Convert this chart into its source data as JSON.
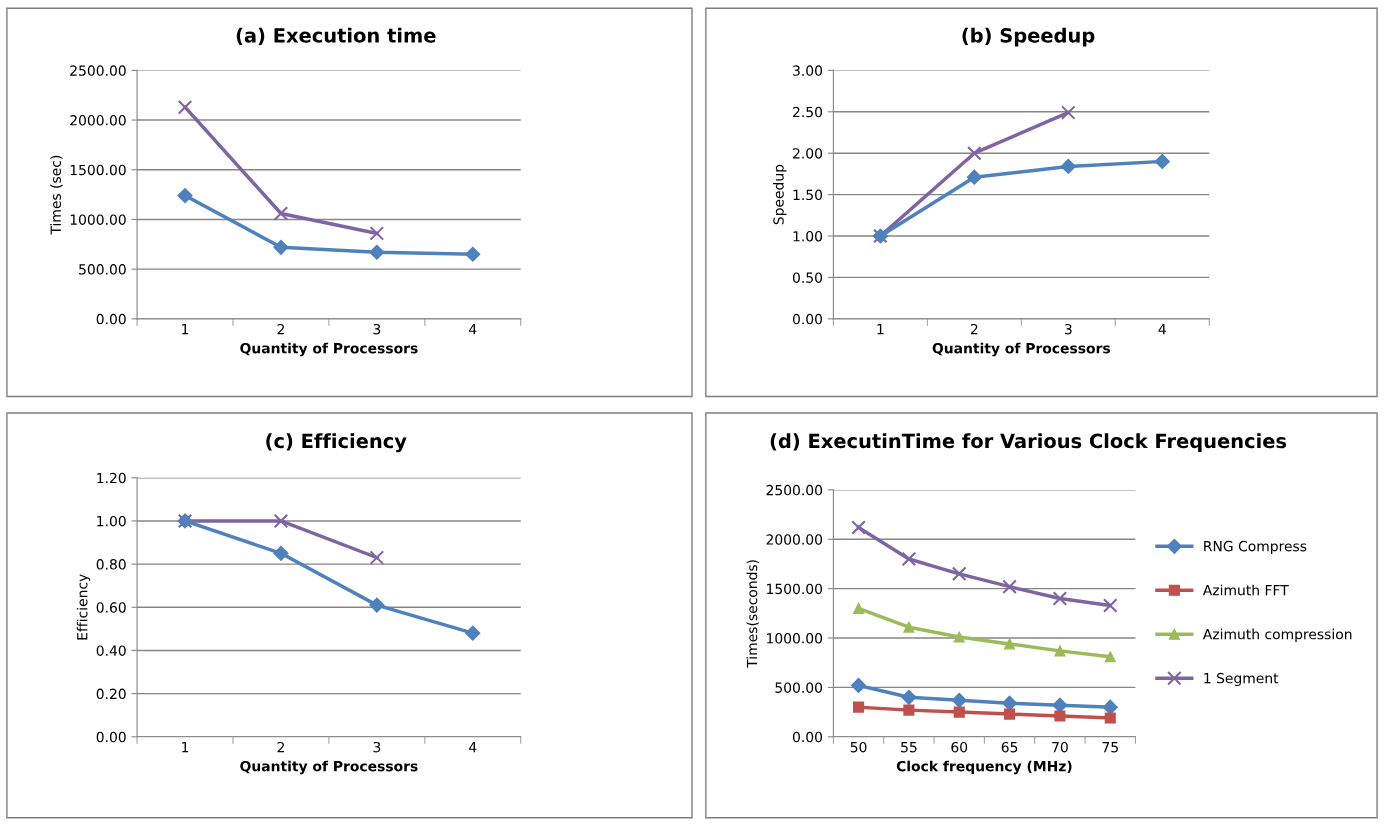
{
  "chart_data": [
    {
      "type": "line",
      "title": "(a) Execution time",
      "xlabel": "Quantity of Processors",
      "ylabel": "Times (sec)",
      "categories": [
        "1",
        "2",
        "3",
        "4"
      ],
      "series": [
        {
          "color": "#8064a2",
          "marker": "cross",
          "values": [
            2130,
            1060,
            860,
            null
          ]
        },
        {
          "color": "#4f81bd",
          "marker": "diamond",
          "values": [
            1240,
            720,
            670,
            650
          ]
        }
      ],
      "ylim": [
        0,
        2500
      ],
      "yticks": [
        {
          "value": 0,
          "label": "0.00"
        },
        {
          "value": 500,
          "label": "500.00"
        },
        {
          "value": 1000,
          "label": "1000.00"
        },
        {
          "value": 1500,
          "label": "1500.00"
        },
        {
          "value": 2000,
          "label": "2000.00"
        },
        {
          "value": 2500,
          "label": "2500.00"
        }
      ],
      "grid": "y",
      "legend": false
    },
    {
      "type": "line",
      "title": "(b) Speedup",
      "xlabel": "Quantity of Processors",
      "ylabel": "Speedup",
      "categories": [
        "1",
        "2",
        "3",
        "4"
      ],
      "series": [
        {
          "color": "#8064a2",
          "marker": "cross",
          "values": [
            1.0,
            2.0,
            2.49,
            null
          ]
        },
        {
          "color": "#4f81bd",
          "marker": "diamond",
          "values": [
            1.0,
            1.71,
            1.84,
            1.9
          ]
        }
      ],
      "ylim": [
        0,
        3
      ],
      "yticks": [
        {
          "value": 0,
          "label": "0.00"
        },
        {
          "value": 0.5,
          "label": "0.50"
        },
        {
          "value": 1,
          "label": "1.00"
        },
        {
          "value": 1.5,
          "label": "1.50"
        },
        {
          "value": 2,
          "label": "2.00"
        },
        {
          "value": 2.5,
          "label": "2.50"
        },
        {
          "value": 3,
          "label": "3.00"
        }
      ],
      "grid": "y",
      "legend": false
    },
    {
      "type": "line",
      "title": "(c) Efficiency",
      "xlabel": "Quantity of Processors",
      "ylabel": "Efficiency",
      "categories": [
        "1",
        "2",
        "3",
        "4"
      ],
      "series": [
        {
          "color": "#8064a2",
          "marker": "cross",
          "values": [
            1.0,
            1.0,
            0.83,
            null
          ]
        },
        {
          "color": "#4f81bd",
          "marker": "diamond",
          "values": [
            1.0,
            0.85,
            0.61,
            0.48
          ]
        }
      ],
      "ylim": [
        0,
        1.2
      ],
      "yticks": [
        {
          "value": 0,
          "label": "0.00"
        },
        {
          "value": 0.2,
          "label": "0.20"
        },
        {
          "value": 0.4,
          "label": "0.40"
        },
        {
          "value": 0.6,
          "label": "0.60"
        },
        {
          "value": 0.8,
          "label": "0.80"
        },
        {
          "value": 1.0,
          "label": "1.00"
        },
        {
          "value": 1.2,
          "label": "1.20"
        }
      ],
      "grid": "y",
      "legend": false
    },
    {
      "type": "line",
      "title": "(d) ExecutinTime for Various Clock Frequencies",
      "xlabel": "Clock frequency (MHz)",
      "ylabel": "Times(seconds)",
      "categories": [
        "50",
        "55",
        "60",
        "65",
        "70",
        "75"
      ],
      "series": [
        {
          "name": "RNG Compress",
          "color": "#4f81bd",
          "marker": "diamond",
          "values": [
            520,
            400,
            370,
            340,
            320,
            300
          ]
        },
        {
          "name": "Azimuth FFT",
          "color": "#c0504d",
          "marker": "square",
          "values": [
            300,
            270,
            250,
            230,
            210,
            190
          ]
        },
        {
          "name": "Azimuth compression",
          "color": "#9bbb59",
          "marker": "triangle",
          "values": [
            1300,
            1110,
            1010,
            940,
            870,
            810
          ]
        },
        {
          "name": "1 Segment",
          "color": "#8064a2",
          "marker": "cross",
          "values": [
            2120,
            1800,
            1650,
            1520,
            1400,
            1330
          ]
        }
      ],
      "ylim": [
        0,
        2500
      ],
      "yticks": [
        {
          "value": 0,
          "label": "0.00"
        },
        {
          "value": 500,
          "label": "500.00"
        },
        {
          "value": 1000,
          "label": "1000.00"
        },
        {
          "value": 1500,
          "label": "1500.00"
        },
        {
          "value": 2000,
          "label": "2000.00"
        },
        {
          "value": 2500,
          "label": "2500.00"
        }
      ],
      "grid": "y",
      "legend": "right"
    }
  ]
}
